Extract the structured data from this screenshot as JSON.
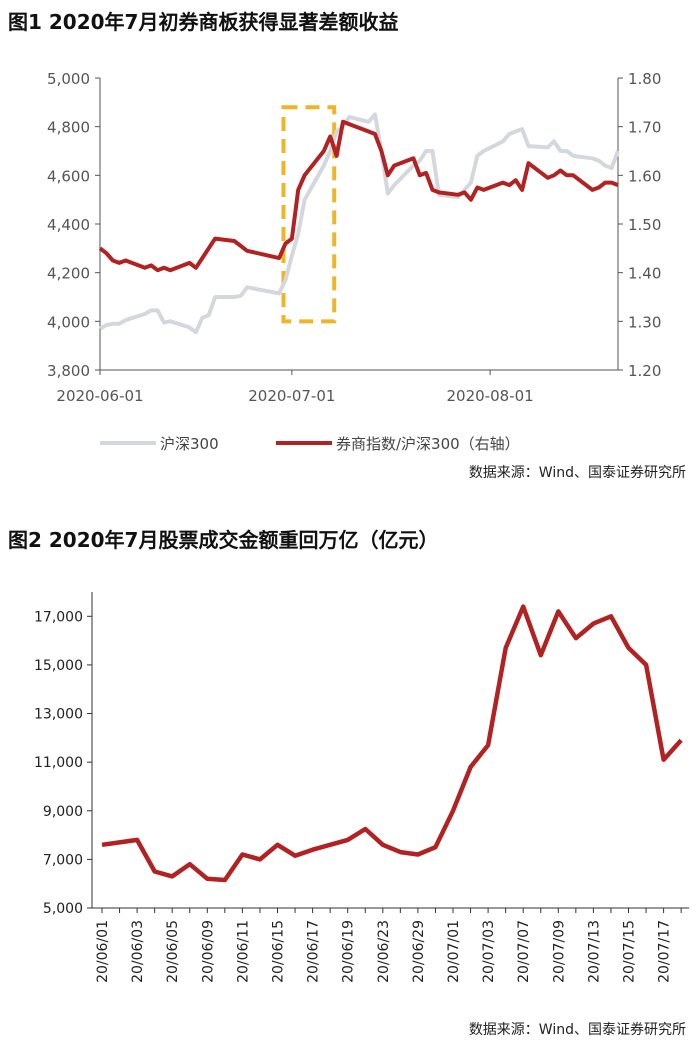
{
  "chart1": {
    "title": "图1  2020年7月初券商板获得显著差额收益",
    "source": "数据来源：Wind、国泰证券研究所",
    "colors": {
      "index": "#d4d8de",
      "ratio": "#b22222",
      "highlight": "#f0b429"
    },
    "chart_data": {
      "type": "line",
      "title": "图1  2020年7月初券商板获得显著差额收益",
      "x_ticks": [
        "2020-06-01",
        "2020-07-01",
        "2020-08-01"
      ],
      "left_axis": {
        "ylim": [
          3800,
          5000
        ],
        "ticks": [
          "3,800",
          "4,000",
          "4,200",
          "4,400",
          "4,600",
          "4,800",
          "5,000"
        ]
      },
      "right_axis": {
        "ylim": [
          1.2,
          1.8
        ],
        "ticks": [
          "1.20",
          "1.30",
          "1.40",
          "1.50",
          "1.60",
          "1.70",
          "1.80"
        ]
      },
      "legend_position": "bottom",
      "highlight_box": {
        "x_from": "2020-06-30",
        "x_to": "2020-07-07",
        "ylim": [
          1.3,
          1.74
        ]
      },
      "series": [
        {
          "name": "沪深300",
          "axis": "left",
          "x": [
            "2020-06-01",
            "2020-06-02",
            "2020-06-03",
            "2020-06-04",
            "2020-06-05",
            "2020-06-08",
            "2020-06-09",
            "2020-06-10",
            "2020-06-11",
            "2020-06-12",
            "2020-06-15",
            "2020-06-16",
            "2020-06-17",
            "2020-06-18",
            "2020-06-19",
            "2020-06-22",
            "2020-06-23",
            "2020-06-24",
            "2020-06-29",
            "2020-06-30",
            "2020-07-01",
            "2020-07-02",
            "2020-07-03",
            "2020-07-06",
            "2020-07-07",
            "2020-07-08",
            "2020-07-09",
            "2020-07-10",
            "2020-07-13",
            "2020-07-14",
            "2020-07-15",
            "2020-07-16",
            "2020-07-17",
            "2020-07-20",
            "2020-07-21",
            "2020-07-22",
            "2020-07-23",
            "2020-07-24",
            "2020-07-27",
            "2020-07-28",
            "2020-07-29",
            "2020-07-30",
            "2020-07-31",
            "2020-08-03",
            "2020-08-04",
            "2020-08-05",
            "2020-08-06",
            "2020-08-07",
            "2020-08-10",
            "2020-08-11",
            "2020-08-12",
            "2020-08-13",
            "2020-08-14",
            "2020-08-17",
            "2020-08-18",
            "2020-08-19",
            "2020-08-20",
            "2020-08-21"
          ],
          "values": [
            3970,
            3985,
            3990,
            3990,
            4005,
            4030,
            4045,
            4045,
            3995,
            4000,
            3975,
            3955,
            4015,
            4025,
            4100,
            4100,
            4105,
            4140,
            4115,
            4170,
            4270,
            4360,
            4500,
            4640,
            4700,
            4780,
            4800,
            4840,
            4820,
            4850,
            4700,
            4525,
            4560,
            4640,
            4660,
            4700,
            4700,
            4520,
            4510,
            4540,
            4570,
            4680,
            4700,
            4740,
            4770,
            4780,
            4790,
            4720,
            4715,
            4740,
            4700,
            4700,
            4680,
            4670,
            4660,
            4640,
            4630,
            4700
          ]
        },
        {
          "name": "券商指数/沪深300（右轴）",
          "axis": "right",
          "x": [
            "2020-06-01",
            "2020-06-02",
            "2020-06-03",
            "2020-06-04",
            "2020-06-05",
            "2020-06-08",
            "2020-06-09",
            "2020-06-10",
            "2020-06-11",
            "2020-06-12",
            "2020-06-15",
            "2020-06-16",
            "2020-06-17",
            "2020-06-18",
            "2020-06-19",
            "2020-06-22",
            "2020-06-23",
            "2020-06-24",
            "2020-06-29",
            "2020-06-30",
            "2020-07-01",
            "2020-07-02",
            "2020-07-03",
            "2020-07-06",
            "2020-07-07",
            "2020-07-08",
            "2020-07-09",
            "2020-07-10",
            "2020-07-13",
            "2020-07-14",
            "2020-07-15",
            "2020-07-16",
            "2020-07-17",
            "2020-07-20",
            "2020-07-21",
            "2020-07-22",
            "2020-07-23",
            "2020-07-24",
            "2020-07-27",
            "2020-07-28",
            "2020-07-29",
            "2020-07-30",
            "2020-07-31",
            "2020-08-03",
            "2020-08-04",
            "2020-08-05",
            "2020-08-06",
            "2020-08-07",
            "2020-08-10",
            "2020-08-11",
            "2020-08-12",
            "2020-08-13",
            "2020-08-14",
            "2020-08-17",
            "2020-08-18",
            "2020-08-19",
            "2020-08-20",
            "2020-08-21"
          ],
          "values": [
            1.45,
            1.44,
            1.425,
            1.42,
            1.425,
            1.41,
            1.415,
            1.405,
            1.41,
            1.405,
            1.42,
            1.41,
            1.43,
            1.45,
            1.47,
            1.465,
            1.455,
            1.445,
            1.43,
            1.46,
            1.47,
            1.57,
            1.6,
            1.65,
            1.68,
            1.64,
            1.71,
            1.705,
            1.69,
            1.685,
            1.65,
            1.6,
            1.62,
            1.635,
            1.6,
            1.605,
            1.57,
            1.565,
            1.56,
            1.565,
            1.55,
            1.575,
            1.57,
            1.585,
            1.58,
            1.59,
            1.57,
            1.625,
            1.595,
            1.6,
            1.61,
            1.6,
            1.6,
            1.57,
            1.575,
            1.585,
            1.585,
            1.58
          ]
        }
      ]
    }
  },
  "chart2": {
    "title": "图2  2020年7月股票成交金额重回万亿（亿元）",
    "source": "数据来源：Wind、国泰证券研究所",
    "colors": {
      "line": "#b22222"
    },
    "chart_data": {
      "type": "line",
      "title": "图2  2020年7月股票成交金额重回万亿（亿元）",
      "ylim": [
        5000,
        18000
      ],
      "y_ticks": [
        "5,000",
        "7,000",
        "9,000",
        "11,000",
        "13,000",
        "15,000",
        "17,000"
      ],
      "x_ticks": [
        "20/06/01",
        "20/06/03",
        "20/06/05",
        "20/06/09",
        "20/06/11",
        "20/06/15",
        "20/06/17",
        "20/06/19",
        "20/06/23",
        "20/06/29",
        "20/07/01",
        "20/07/03",
        "20/07/07",
        "20/07/09",
        "20/07/13",
        "20/07/15",
        "20/07/17"
      ],
      "series": [
        {
          "name": "",
          "x": [
            "20/06/01",
            "20/06/02",
            "20/06/03",
            "20/06/04",
            "20/06/05",
            "20/06/08",
            "20/06/09",
            "20/06/10",
            "20/06/11",
            "20/06/12",
            "20/06/15",
            "20/06/16",
            "20/06/17",
            "20/06/18",
            "20/06/19",
            "20/06/22",
            "20/06/23",
            "20/06/24",
            "20/06/29",
            "20/06/30",
            "20/07/01",
            "20/07/02",
            "20/07/03",
            "20/07/06",
            "20/07/07",
            "20/07/08",
            "20/07/09",
            "20/07/10",
            "20/07/13",
            "20/07/14",
            "20/07/15",
            "20/07/16",
            "20/07/17",
            "20/07/20"
          ],
          "values": [
            7600,
            7700,
            7800,
            6500,
            6300,
            6800,
            6200,
            6150,
            7200,
            7000,
            7600,
            7150,
            7400,
            7600,
            7800,
            8250,
            7600,
            7300,
            7200,
            7500,
            9000,
            10800,
            11700,
            15700,
            17400,
            15400,
            17200,
            16100,
            16700,
            17000,
            15700,
            15000,
            11100,
            11900
          ]
        }
      ]
    }
  }
}
